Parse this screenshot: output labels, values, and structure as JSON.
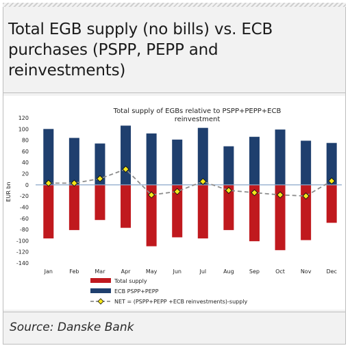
{
  "header": {
    "title": "Total EGB supply (no bills) vs. ECB purchases (PSPP, PEPP and reinvestments)"
  },
  "source": "Source: Danske Bank",
  "colors": {
    "total_supply": "#c0191e",
    "ecb_purchases": "#1f3f6e",
    "net_line": "#8c8c8c",
    "net_marker": "#f5e61a",
    "zero_line": "#8aa6c8"
  },
  "chart_data": {
    "type": "bar",
    "title": "Total supply of EGBs relative to PSPP+PEPP+ECB reinvestment",
    "ylabel": "EUR bn",
    "xlabel": "",
    "ylim": [
      -140,
      120
    ],
    "yticks": [
      -140,
      -120,
      -100,
      -80,
      -60,
      -40,
      -20,
      0,
      20,
      40,
      60,
      80,
      100,
      120
    ],
    "grid": false,
    "legend_position": "bottom",
    "categories": [
      "Jan",
      "Feb",
      "Mar",
      "Apr",
      "May",
      "Jun",
      "Jul",
      "Aug",
      "Sep",
      "Oct",
      "Nov",
      "Dec"
    ],
    "series": [
      {
        "name": "Total supply",
        "type": "bar",
        "values": [
          -96,
          -81,
          -63,
          -77,
          -110,
          -94,
          -96,
          -81,
          -101,
          -117,
          -99,
          -68
        ]
      },
      {
        "name": "ECB PSPP+PEPP",
        "type": "bar",
        "values": [
          100,
          84,
          74,
          106,
          92,
          81,
          102,
          69,
          86,
          99,
          79,
          75
        ]
      },
      {
        "name": "NET = (PSPP+PEPP +ECB reinvestments)-supply",
        "type": "line",
        "values": [
          3,
          3,
          11,
          28,
          -18,
          -12,
          6,
          -10,
          -14,
          -18,
          -20,
          7
        ]
      }
    ]
  }
}
